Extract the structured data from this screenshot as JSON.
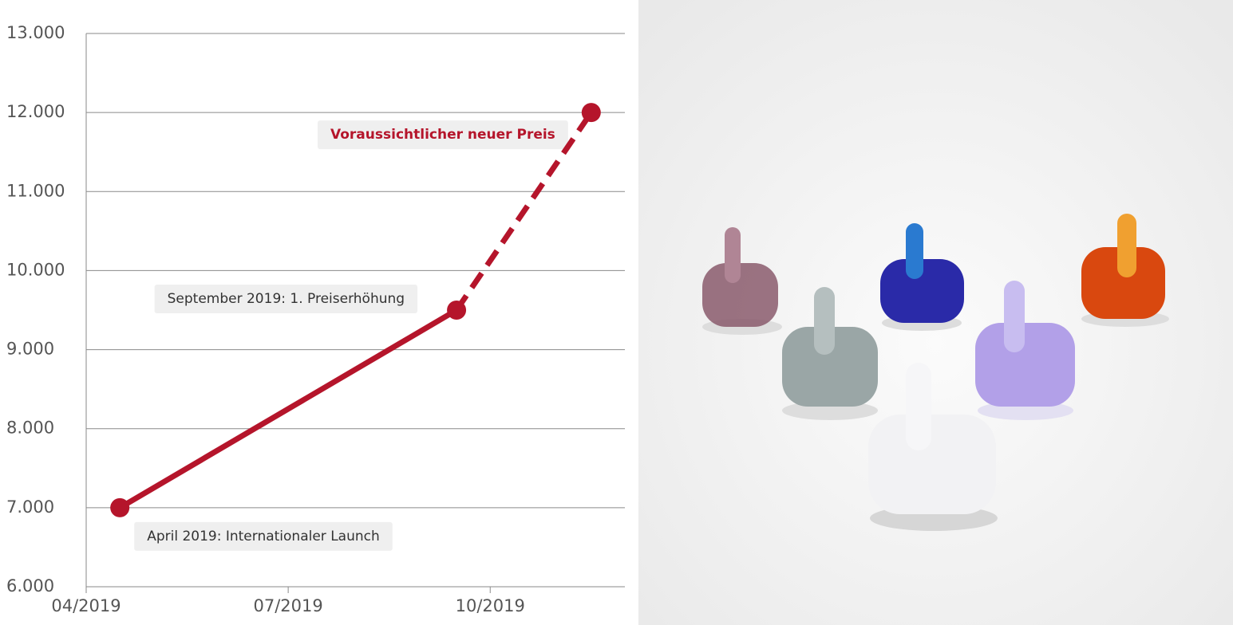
{
  "chart_data": {
    "type": "line",
    "x": [
      "2019-04",
      "2019-09",
      "2019-11"
    ],
    "series": [
      {
        "color": "#b5152b",
        "values": [
          7000,
          9500,
          12000
        ],
        "styles": [
          "solid",
          "solid",
          "dashed"
        ]
      }
    ],
    "xlim": [
      "2019-04",
      "2019-11"
    ],
    "xticks": [
      {
        "value": "2019-04",
        "label": "04/2019"
      },
      {
        "value": "2019-07",
        "label": "07/2019"
      },
      {
        "value": "2019-10",
        "label": "10/2019"
      }
    ],
    "ylim": [
      6000,
      13000
    ],
    "yticks": [
      {
        "value": 6000,
        "label": "6.000"
      },
      {
        "value": 7000,
        "label": "7.000"
      },
      {
        "value": 8000,
        "label": "8.000"
      },
      {
        "value": 9000,
        "label": "9.000"
      },
      {
        "value": 10000,
        "label": "10.000"
      },
      {
        "value": 11000,
        "label": "11.000"
      },
      {
        "value": 12000,
        "label": "12.000"
      },
      {
        "value": 13000,
        "label": "13.000"
      }
    ],
    "grid": true,
    "annotations": [
      "April 2019: Internationaler Launch",
      "September 2019: 1. Preiserhöhung",
      "Voraussichtlicher neuer Preis"
    ]
  }
}
